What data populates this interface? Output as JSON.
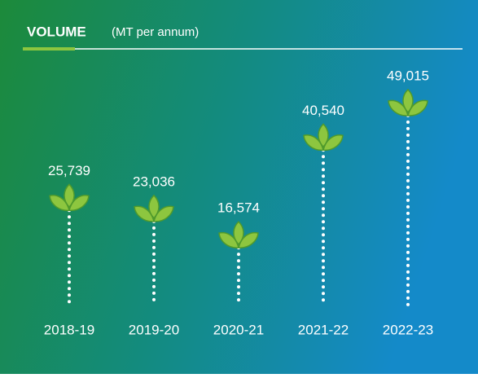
{
  "chart_data": {
    "type": "lollipop",
    "title": "VOLUME",
    "subtitle": "(MT per annum)",
    "categories": [
      "2018-19",
      "2019-20",
      "2020-21",
      "2021-22",
      "2022-23"
    ],
    "values": [
      25739,
      23036,
      16574,
      40540,
      49015
    ],
    "value_labels": [
      "25,739",
      "23,036",
      "16,574",
      "40,540",
      "49,015"
    ],
    "ylim": [
      0,
      55000
    ],
    "color": "#8dc63f"
  }
}
